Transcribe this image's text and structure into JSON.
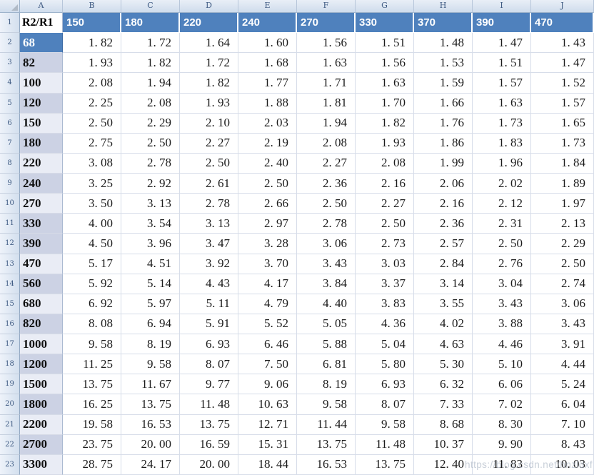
{
  "sheet": {
    "column_letters": [
      "A",
      "B",
      "C",
      "D",
      "E",
      "F",
      "G",
      "H",
      "I",
      "J"
    ],
    "row_numbers": [
      1,
      2,
      3,
      4,
      5,
      6,
      7,
      8,
      9,
      10,
      11,
      12,
      13,
      14,
      15,
      16,
      17,
      18,
      19,
      20,
      21,
      22,
      23
    ]
  },
  "table": {
    "header_label": "R2/R1",
    "column_headers": [
      "150",
      "180",
      "220",
      "240",
      "270",
      "330",
      "370",
      "390",
      "470"
    ],
    "rows": [
      {
        "label": "68",
        "selected": true,
        "values": [
          1.82,
          1.72,
          1.64,
          1.6,
          1.56,
          1.51,
          1.48,
          1.47,
          1.43
        ]
      },
      {
        "label": "82",
        "values": [
          1.93,
          1.82,
          1.72,
          1.68,
          1.63,
          1.56,
          1.53,
          1.51,
          1.47
        ]
      },
      {
        "label": "100",
        "values": [
          2.08,
          1.94,
          1.82,
          1.77,
          1.71,
          1.63,
          1.59,
          1.57,
          1.52
        ]
      },
      {
        "label": "120",
        "values": [
          2.25,
          2.08,
          1.93,
          1.88,
          1.81,
          1.7,
          1.66,
          1.63,
          1.57
        ]
      },
      {
        "label": "150",
        "values": [
          2.5,
          2.29,
          2.1,
          2.03,
          1.94,
          1.82,
          1.76,
          1.73,
          1.65
        ]
      },
      {
        "label": "180",
        "values": [
          2.75,
          2.5,
          2.27,
          2.19,
          2.08,
          1.93,
          1.86,
          1.83,
          1.73
        ]
      },
      {
        "label": "220",
        "values": [
          3.08,
          2.78,
          2.5,
          2.4,
          2.27,
          2.08,
          1.99,
          1.96,
          1.84
        ]
      },
      {
        "label": "240",
        "values": [
          3.25,
          2.92,
          2.61,
          2.5,
          2.36,
          2.16,
          2.06,
          2.02,
          1.89
        ]
      },
      {
        "label": "270",
        "values": [
          3.5,
          3.13,
          2.78,
          2.66,
          2.5,
          2.27,
          2.16,
          2.12,
          1.97
        ]
      },
      {
        "label": "330",
        "values": [
          4.0,
          3.54,
          3.13,
          2.97,
          2.78,
          2.5,
          2.36,
          2.31,
          2.13
        ]
      },
      {
        "label": "390",
        "values": [
          4.5,
          3.96,
          3.47,
          3.28,
          3.06,
          2.73,
          2.57,
          2.5,
          2.29
        ]
      },
      {
        "label": "470",
        "values": [
          5.17,
          4.51,
          3.92,
          3.7,
          3.43,
          3.03,
          2.84,
          2.76,
          2.5
        ]
      },
      {
        "label": "560",
        "values": [
          5.92,
          5.14,
          4.43,
          4.17,
          3.84,
          3.37,
          3.14,
          3.04,
          2.74
        ]
      },
      {
        "label": "680",
        "values": [
          6.92,
          5.97,
          5.11,
          4.79,
          4.4,
          3.83,
          3.55,
          3.43,
          3.06
        ]
      },
      {
        "label": "820",
        "values": [
          8.08,
          6.94,
          5.91,
          5.52,
          5.05,
          4.36,
          4.02,
          3.88,
          3.43
        ]
      },
      {
        "label": "1000",
        "values": [
          9.58,
          8.19,
          6.93,
          6.46,
          5.88,
          5.04,
          4.63,
          4.46,
          3.91
        ]
      },
      {
        "label": "1200",
        "values": [
          11.25,
          9.58,
          8.07,
          7.5,
          6.81,
          5.8,
          5.3,
          5.1,
          4.44
        ]
      },
      {
        "label": "1500",
        "values": [
          13.75,
          11.67,
          9.77,
          9.06,
          8.19,
          6.93,
          6.32,
          6.06,
          5.24
        ]
      },
      {
        "label": "1800",
        "values": [
          16.25,
          13.75,
          11.48,
          10.63,
          9.58,
          8.07,
          7.33,
          7.02,
          6.04
        ]
      },
      {
        "label": "2200",
        "values": [
          19.58,
          16.53,
          13.75,
          12.71,
          11.44,
          9.58,
          8.68,
          8.3,
          7.1
        ]
      },
      {
        "label": "2700",
        "values": [
          23.75,
          20.0,
          16.59,
          15.31,
          13.75,
          11.48,
          10.37,
          9.9,
          8.43
        ]
      },
      {
        "label": "3300",
        "values": [
          28.75,
          24.17,
          20.0,
          18.44,
          16.53,
          13.75,
          12.4,
          11.83,
          10.03
        ]
      }
    ],
    "shaded_sheet_rows": [
      3,
      5,
      7,
      9,
      11,
      12,
      14,
      16,
      18,
      20,
      22
    ]
  },
  "watermark": {
    "text": "https://blog.csdn.net/hnzldxf"
  },
  "colors": {
    "header_blue": "#4f81bd",
    "band_dark": "#ccd2e4",
    "band_light": "#e9ecf5",
    "gridline": "#d7dde9",
    "header_strip_text": "#3e5a82"
  }
}
